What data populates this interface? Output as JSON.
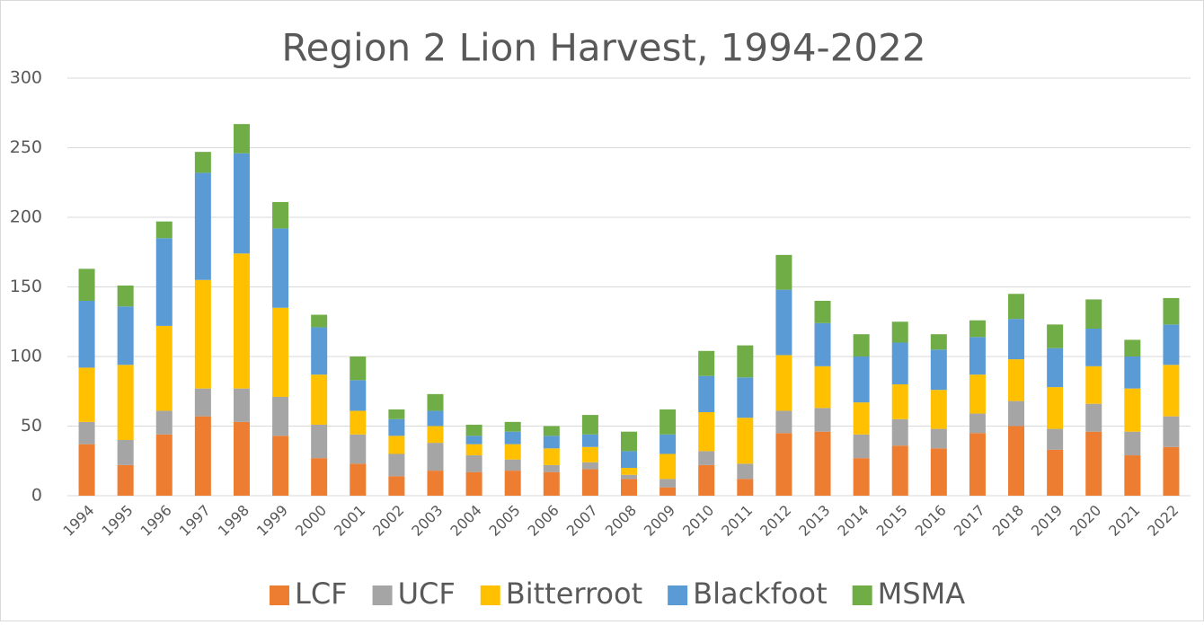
{
  "chart_data": {
    "type": "stacked_bar",
    "title": "Region 2 Lion Harvest, 1994-2022",
    "categories": [
      "1994",
      "1995",
      "1996",
      "1997",
      "1998",
      "1999",
      "2000",
      "2001",
      "2002",
      "2003",
      "2004",
      "2005",
      "2006",
      "2007",
      "2008",
      "2009",
      "2010",
      "2011",
      "2012",
      "2013",
      "2014",
      "2015",
      "2016",
      "2017",
      "2018",
      "2019",
      "2020",
      "2021",
      "2022"
    ],
    "series": [
      {
        "name": "LCF",
        "color": "#ed7d31",
        "values": [
          37,
          22,
          44,
          57,
          53,
          43,
          27,
          23,
          14,
          18,
          17,
          18,
          17,
          19,
          12,
          6,
          22,
          12,
          45,
          46,
          27,
          36,
          34,
          45,
          50,
          33,
          46,
          29,
          35
        ]
      },
      {
        "name": "UCF",
        "color": "#a5a5a5",
        "values": [
          16,
          18,
          17,
          20,
          24,
          28,
          24,
          21,
          16,
          20,
          12,
          8,
          5,
          5,
          3,
          6,
          10,
          11,
          16,
          17,
          17,
          19,
          14,
          14,
          18,
          15,
          20,
          17,
          22
        ]
      },
      {
        "name": "Bitterroot",
        "color": "#ffc000",
        "values": [
          39,
          54,
          61,
          78,
          97,
          64,
          36,
          17,
          13,
          12,
          8,
          11,
          12,
          11,
          5,
          18,
          28,
          33,
          40,
          30,
          23,
          25,
          28,
          28,
          30,
          30,
          27,
          31,
          37
        ]
      },
      {
        "name": "Blackfoot",
        "color": "#5b9bd5",
        "values": [
          48,
          42,
          63,
          77,
          72,
          57,
          34,
          22,
          12,
          11,
          6,
          9,
          9,
          9,
          12,
          14,
          26,
          29,
          47,
          31,
          33,
          30,
          29,
          27,
          29,
          28,
          27,
          23,
          29
        ]
      },
      {
        "name": "MSMA",
        "color": "#70ad47",
        "values": [
          23,
          15,
          12,
          15,
          21,
          19,
          9,
          17,
          7,
          12,
          8,
          7,
          7,
          14,
          14,
          18,
          18,
          23,
          25,
          16,
          16,
          15,
          11,
          12,
          18,
          17,
          21,
          12,
          19
        ]
      }
    ],
    "ylim": [
      0,
      300
    ],
    "yticks": [
      0,
      50,
      100,
      150,
      200,
      250,
      300
    ],
    "grid": true,
    "legend": "bottom"
  }
}
